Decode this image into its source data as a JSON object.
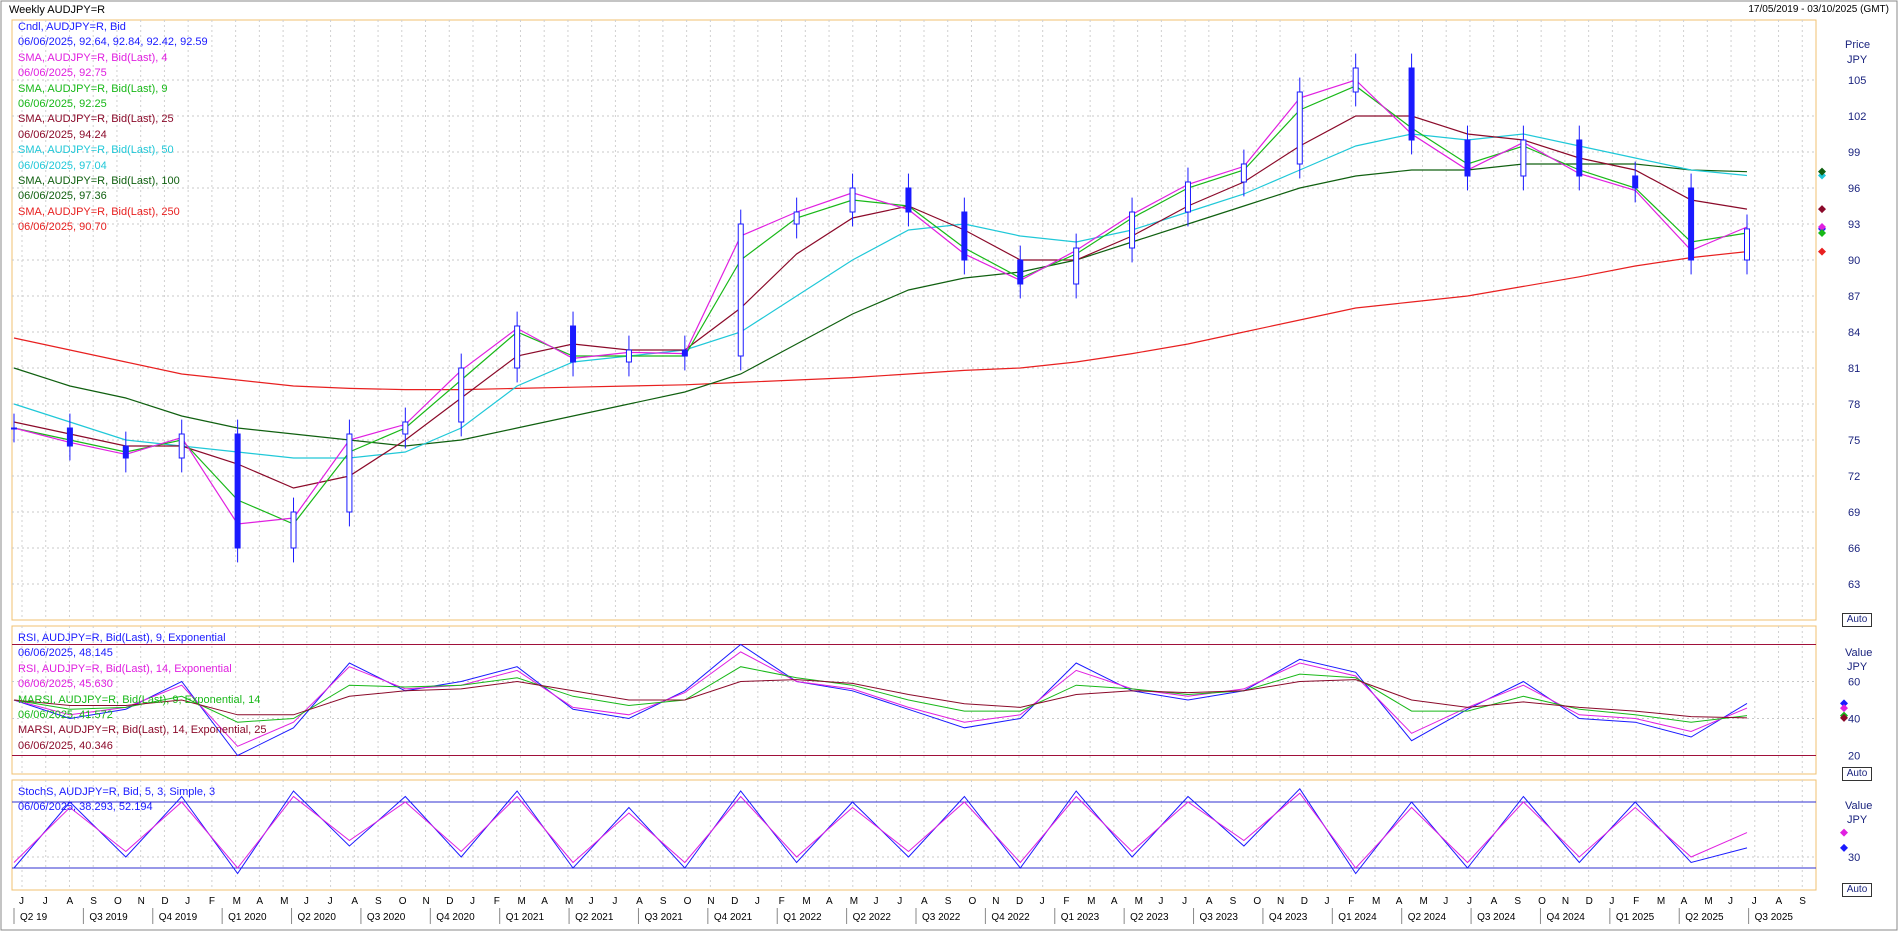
{
  "window": {
    "title": "Weekly AUDJPY=R",
    "date_range": "17/05/2019 - 03/10/2025 (GMT)"
  },
  "price_panel": {
    "axis_title": "Price",
    "axis_unit": "JPY",
    "auto_label": "Auto",
    "legend": [
      {
        "label": "Cndl, AUDJPY=R, Bid",
        "value": "06/06/2025, 92.64, 92.84, 92.42, 92.59",
        "color": "#1a1aff"
      },
      {
        "label": "SMA, AUDJPY=R, Bid(Last), 4",
        "value": "06/06/2025, 92.75",
        "color": "#e020e0"
      },
      {
        "label": "SMA, AUDJPY=R, Bid(Last), 9",
        "value": "06/06/2025, 92.25",
        "color": "#18b818"
      },
      {
        "label": "SMA, AUDJPY=R, Bid(Last), 25",
        "value": "06/06/2025, 94.24",
        "color": "#8b0a2a"
      },
      {
        "label": "SMA, AUDJPY=R, Bid(Last), 50",
        "value": "06/06/2025, 97.04",
        "color": "#20c8d8"
      },
      {
        "label": "SMA, AUDJPY=R, Bid(Last), 100",
        "value": "06/06/2025, 97.36",
        "color": "#106010"
      },
      {
        "label": "SMA, AUDJPY=R, Bid(Last), 250",
        "value": "06/06/2025, 90.70",
        "color": "#e82020"
      }
    ]
  },
  "rsi_panel": {
    "axis_title": "Value",
    "axis_unit": "JPY",
    "auto_label": "Auto",
    "legend": [
      {
        "label": "RSI, AUDJPY=R, Bid(Last), 9, Exponential",
        "value": "06/06/2025, 48.145",
        "color": "#1a1aff"
      },
      {
        "label": "RSI, AUDJPY=R, Bid(Last), 14, Exponential",
        "value": "06/06/2025, 45.630",
        "color": "#e020e0"
      },
      {
        "label": "MARSI, AUDJPY=R, Bid(Last), 9, Exponential, 14",
        "value": "06/06/2025, 41.572",
        "color": "#18b818"
      },
      {
        "label": "MARSI, AUDJPY=R, Bid(Last), 14, Exponential, 25",
        "value": "06/06/2025, 40.346",
        "color": "#8b0a2a"
      }
    ]
  },
  "stoch_panel": {
    "axis_title": "Value",
    "axis_unit": "JPY",
    "auto_label": "Auto",
    "legend": [
      {
        "label": "StochS, AUDJPY=R, Bid, 5, 3, Simple, 3",
        "value": "06/06/2025, 38.293, 52.194",
        "color": "#1a1aff"
      }
    ]
  },
  "chart_data": [
    {
      "type": "line",
      "title": "Weekly AUDJPY=R",
      "ylabel": "Price JPY",
      "ylim": [
        60,
        110
      ],
      "yticks": [
        63,
        66,
        69,
        72,
        75,
        78,
        81,
        84,
        87,
        90,
        93,
        96,
        99,
        102,
        105
      ],
      "x": [
        "2019-05",
        "2019-08",
        "2019-11",
        "2020-02",
        "2020-03",
        "2020-05",
        "2020-08",
        "2020-11",
        "2021-02",
        "2021-05",
        "2021-08",
        "2021-11",
        "2022-02",
        "2022-04",
        "2022-06",
        "2022-08",
        "2022-10",
        "2022-12",
        "2023-03",
        "2023-05",
        "2023-08",
        "2023-11",
        "2024-02",
        "2024-05",
        "2024-07",
        "2024-08",
        "2024-09",
        "2024-11",
        "2025-01",
        "2025-03",
        "2025-04",
        "2025-06"
      ],
      "series": [
        {
          "name": "Cndl, AUDJPY=R, Bid",
          "values": [
            76.0,
            74.5,
            73.5,
            75.5,
            66.0,
            69.0,
            75.5,
            76.5,
            81.0,
            84.5,
            81.5,
            82.5,
            82.0,
            93.0,
            94.0,
            96.0,
            94.0,
            90.0,
            88.0,
            91.0,
            94.0,
            96.5,
            98.0,
            104.0,
            106.0,
            100.0,
            97.0,
            100.0,
            97.0,
            96.0,
            90.0,
            92.59
          ]
        },
        {
          "name": "SMA, AUDJPY=R, Bid(Last), 4",
          "values": [
            76.0,
            74.8,
            73.8,
            75.2,
            68.0,
            68.5,
            75.0,
            76.3,
            80.8,
            84.3,
            81.8,
            82.3,
            82.2,
            92.0,
            94.0,
            95.6,
            94.2,
            90.5,
            88.3,
            90.8,
            93.8,
            96.3,
            97.8,
            103.5,
            105.0,
            100.5,
            97.5,
            99.8,
            97.2,
            95.8,
            90.8,
            92.75
          ]
        },
        {
          "name": "SMA, AUDJPY=R, Bid(Last), 9",
          "values": [
            76.0,
            75.0,
            74.0,
            75.0,
            70.0,
            68.0,
            74.0,
            76.0,
            80.0,
            84.0,
            82.0,
            82.0,
            82.0,
            90.0,
            93.5,
            95.0,
            94.5,
            91.0,
            88.5,
            90.5,
            93.5,
            96.0,
            97.5,
            102.5,
            104.5,
            101.0,
            98.0,
            99.5,
            97.5,
            96.0,
            91.5,
            92.25
          ]
        },
        {
          "name": "SMA, AUDJPY=R, Bid(Last), 25",
          "values": [
            76.5,
            75.5,
            74.5,
            74.5,
            73.0,
            71.0,
            72.0,
            75.0,
            78.5,
            82.0,
            83.0,
            82.5,
            82.5,
            86.0,
            90.5,
            93.5,
            94.5,
            92.5,
            90.0,
            90.0,
            92.0,
            94.5,
            96.5,
            99.5,
            102.0,
            102.0,
            100.5,
            100.0,
            98.5,
            97.5,
            95.0,
            94.24
          ]
        },
        {
          "name": "SMA, AUDJPY=R, Bid(Last), 50",
          "values": [
            78.0,
            76.5,
            75.0,
            74.5,
            74.0,
            73.5,
            73.5,
            74.0,
            76.0,
            79.5,
            81.5,
            82.0,
            82.5,
            84.0,
            87.0,
            90.0,
            92.5,
            93.0,
            92.0,
            91.5,
            92.5,
            94.0,
            95.5,
            97.5,
            99.5,
            100.5,
            100.0,
            100.5,
            99.5,
            98.5,
            97.5,
            97.04
          ]
        },
        {
          "name": "SMA, AUDJPY=R, Bid(Last), 100",
          "values": [
            81.0,
            79.5,
            78.5,
            77.0,
            76.0,
            75.5,
            75.0,
            74.5,
            75.0,
            76.0,
            77.0,
            78.0,
            79.0,
            80.5,
            83.0,
            85.5,
            87.5,
            88.5,
            89.0,
            90.0,
            91.5,
            93.0,
            94.5,
            96.0,
            97.0,
            97.5,
            97.5,
            98.0,
            98.0,
            98.0,
            97.5,
            97.36
          ]
        },
        {
          "name": "SMA, AUDJPY=R, Bid(Last), 250",
          "values": [
            83.5,
            82.5,
            81.5,
            80.5,
            80.0,
            79.5,
            79.3,
            79.2,
            79.2,
            79.3,
            79.4,
            79.5,
            79.6,
            79.8,
            80.0,
            80.2,
            80.5,
            80.8,
            81.0,
            81.5,
            82.2,
            83.0,
            84.0,
            85.0,
            86.0,
            86.5,
            87.0,
            87.8,
            88.6,
            89.5,
            90.2,
            90.7
          ]
        }
      ]
    },
    {
      "type": "line",
      "ylabel": "Value JPY",
      "ylim": [
        10,
        90
      ],
      "yticks": [
        20,
        40,
        60
      ],
      "series": [
        {
          "name": "RSI, AUDJPY=R, Bid(Last), 9, Exponential",
          "values": [
            50,
            40,
            45,
            60,
            20,
            35,
            70,
            55,
            60,
            68,
            45,
            40,
            55,
            80,
            60,
            55,
            45,
            35,
            40,
            70,
            55,
            50,
            55,
            72,
            65,
            28,
            45,
            60,
            40,
            38,
            30,
            48.145
          ]
        },
        {
          "name": "RSI, AUDJPY=R, Bid(Last), 14, Exponential",
          "values": [
            50,
            42,
            46,
            58,
            25,
            38,
            68,
            56,
            58,
            66,
            46,
            42,
            54,
            76,
            60,
            56,
            46,
            38,
            42,
            66,
            56,
            52,
            56,
            70,
            63,
            32,
            46,
            58,
            42,
            40,
            33,
            45.63
          ]
        },
        {
          "name": "MARSI, AUDJPY=R, Bid(Last), 9, Exponential, 14",
          "values": [
            50,
            45,
            46,
            52,
            38,
            40,
            58,
            57,
            58,
            62,
            52,
            47,
            50,
            68,
            62,
            58,
            50,
            44,
            44,
            58,
            56,
            53,
            55,
            64,
            62,
            44,
            44,
            52,
            45,
            42,
            38,
            41.572
          ]
        },
        {
          "name": "MARSI, AUDJPY=R, Bid(Last), 14, Exponential, 25",
          "values": [
            50,
            47,
            47,
            50,
            42,
            42,
            52,
            55,
            56,
            60,
            55,
            50,
            50,
            60,
            61,
            59,
            53,
            48,
            46,
            53,
            55,
            54,
            55,
            60,
            61,
            50,
            46,
            49,
            46,
            44,
            41,
            40.346
          ]
        }
      ]
    },
    {
      "type": "line",
      "ylabel": "Value JPY",
      "ylim": [
        0,
        100
      ],
      "yticks": [
        30
      ],
      "series": [
        {
          "name": "StochS, AUDJPY=R, Bid, 5, 3, Simple, 3 %K",
          "values": [
            20,
            80,
            30,
            85,
            15,
            90,
            40,
            85,
            30,
            90,
            20,
            75,
            20,
            90,
            25,
            80,
            30,
            85,
            20,
            90,
            30,
            85,
            40,
            92,
            15,
            80,
            20,
            85,
            25,
            80,
            25,
            38.293
          ]
        },
        {
          "name": "StochS, AUDJPY=R, Bid, 5, 3, Simple, 3 %D",
          "values": [
            25,
            75,
            35,
            80,
            20,
            85,
            45,
            80,
            35,
            85,
            25,
            70,
            25,
            85,
            30,
            75,
            35,
            80,
            25,
            85,
            35,
            80,
            45,
            88,
            20,
            75,
            25,
            80,
            30,
            75,
            30,
            52.194
          ]
        }
      ]
    }
  ],
  "x_axis": {
    "month_ticks": [
      "J",
      "J",
      "A",
      "S",
      "O",
      "N",
      "D",
      "J",
      "F",
      "M",
      "A",
      "M",
      "J",
      "J",
      "A",
      "S",
      "O",
      "N",
      "D",
      "J",
      "F",
      "M",
      "A",
      "M",
      "J",
      "J",
      "A",
      "S",
      "O",
      "N",
      "D",
      "J",
      "F",
      "M",
      "A",
      "M",
      "J",
      "J",
      "A",
      "S",
      "O",
      "N",
      "D",
      "J",
      "F",
      "M",
      "A",
      "M",
      "J",
      "J",
      "A",
      "S",
      "O",
      "N",
      "D",
      "J",
      "F",
      "M",
      "A",
      "M",
      "J",
      "J",
      "A",
      "S",
      "O",
      "N",
      "D",
      "J",
      "F",
      "M",
      "A",
      "M",
      "J",
      "J",
      "A",
      "S"
    ],
    "quarters": [
      "Q2 19",
      "Q3 2019",
      "Q4 2019",
      "Q1 2020",
      "Q2 2020",
      "Q3 2020",
      "Q4 2020",
      "Q1 2021",
      "Q2 2021",
      "Q3 2021",
      "Q4 2021",
      "Q1 2022",
      "Q2 2022",
      "Q3 2022",
      "Q4 2022",
      "Q1 2023",
      "Q2 2023",
      "Q3 2023",
      "Q4 2023",
      "Q1 2024",
      "Q2 2024",
      "Q3 2024",
      "Q4 2024",
      "Q1 2025",
      "Q2 2025",
      "Q3 2025"
    ]
  }
}
